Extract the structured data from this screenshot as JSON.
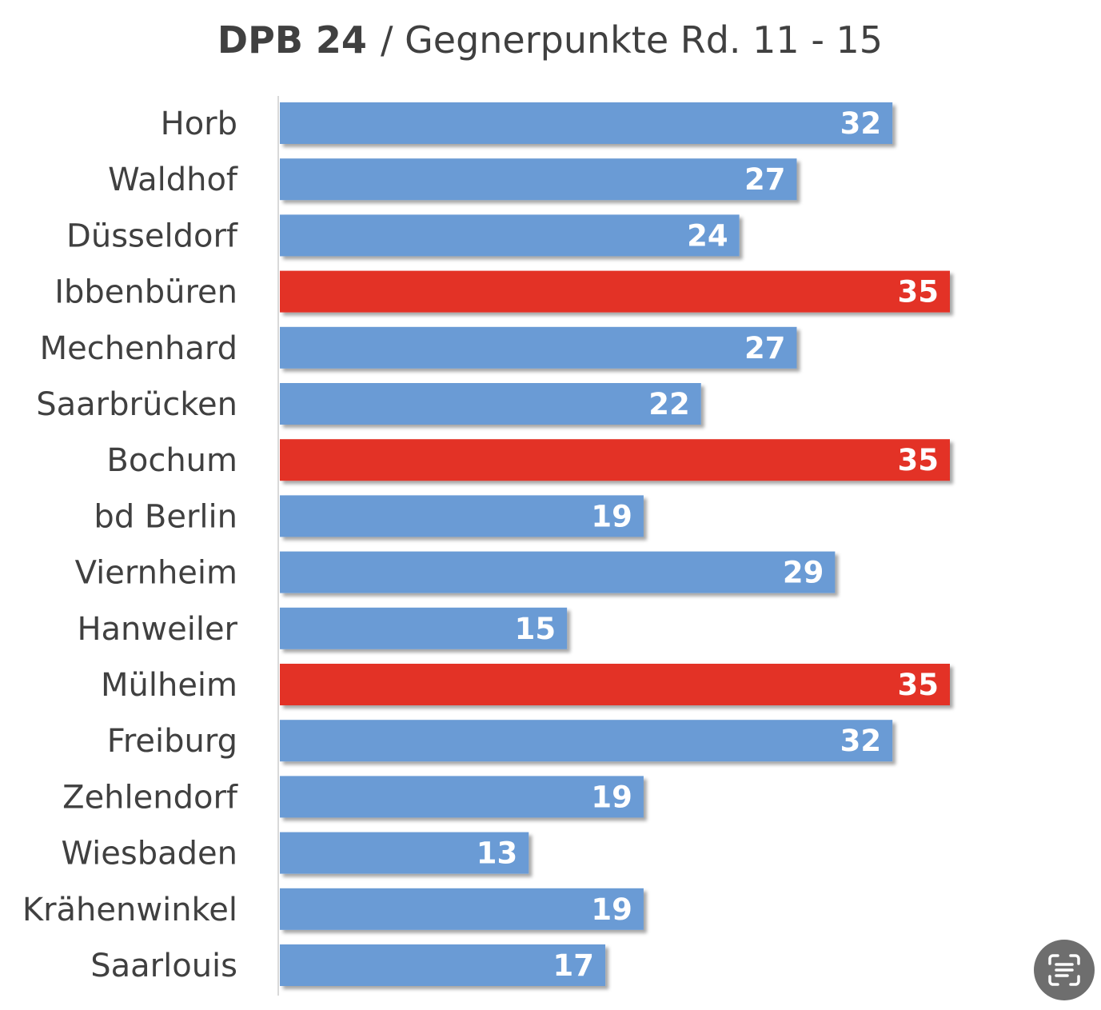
{
  "chart_data": {
    "type": "bar",
    "orientation": "horizontal",
    "title_bold": "DPB 24",
    "title_rest": "/ Gegnerpunkte Rd. 11 - 15",
    "xlabel": "",
    "ylabel": "",
    "xlim": [
      0,
      35
    ],
    "grid": false,
    "categories": [
      "Horb",
      "Waldhof",
      "Düsseldorf",
      "Ibbenbüren",
      "Mechenhard",
      "Saarbrücken",
      "Bochum",
      "bd Berlin",
      "Viernheim",
      "Hanweiler",
      "Mülheim",
      "Freiburg",
      "Zehlendorf",
      "Wiesbaden",
      "Krähenwinkel",
      "Saarlouis"
    ],
    "values": [
      32,
      27,
      24,
      35,
      27,
      22,
      35,
      19,
      29,
      15,
      35,
      32,
      19,
      13,
      19,
      17
    ],
    "highlight_value": 35,
    "colors": {
      "default": "#6a9bd5",
      "highlight": "#e33126",
      "label": "#ffffff",
      "text": "#404040"
    }
  },
  "overlay": {
    "icon": "scan-text-icon"
  }
}
